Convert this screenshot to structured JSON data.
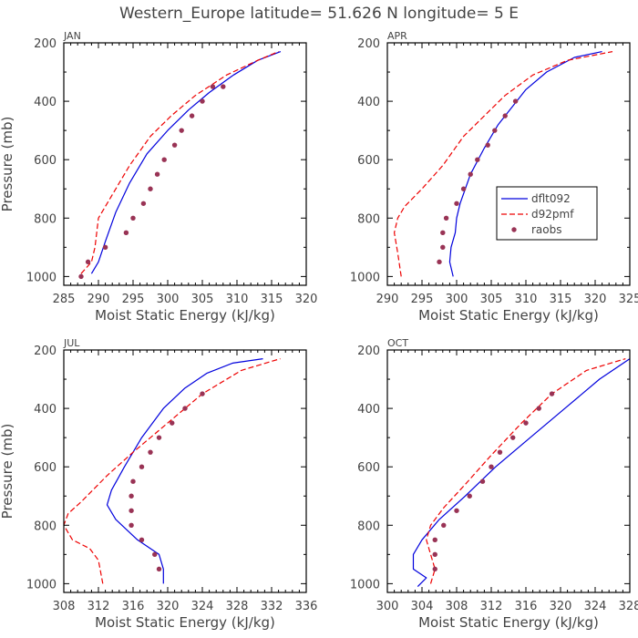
{
  "figure_title": "Western_Europe  latitude= 51.626 N longitude= 5 E",
  "legend_labels": [
    "dflt092",
    "d92pmf",
    "raobs"
  ],
  "colors": {
    "dflt092": "#0000dd",
    "d92pmf": "#ee0000",
    "raobs": "#993355",
    "frame": "#000000",
    "text": "#444444"
  },
  "chart_data": [
    {
      "type": "line",
      "title": "JAN",
      "xlabel": "Moist Static Energy (kJ/kg)",
      "ylabel": "Pressure (mb)",
      "xlim": [
        285,
        320
      ],
      "ylim": [
        1030,
        200
      ],
      "xticks": [
        285,
        290,
        295,
        300,
        305,
        310,
        315,
        320
      ],
      "yticks": [
        200,
        400,
        600,
        800,
        1000
      ],
      "legend": false,
      "series": [
        {
          "name": "dflt092",
          "style": "solid",
          "x": [
            289.0,
            290.0,
            291.0,
            292.5,
            294.5,
            297.0,
            300.0,
            303.0,
            306.0,
            309.5,
            313.0,
            316.3
          ],
          "y": [
            990,
            950,
            880,
            780,
            680,
            580,
            500,
            430,
            370,
            310,
            260,
            230
          ]
        },
        {
          "name": "d92pmf",
          "style": "dashed",
          "x": [
            287.5,
            289.0,
            289.5,
            290.0,
            292.0,
            294.5,
            297.5,
            300.5,
            304.0,
            308.5,
            313.0,
            316.0
          ],
          "y": [
            990,
            950,
            900,
            800,
            720,
            620,
            520,
            450,
            380,
            310,
            260,
            230
          ]
        },
        {
          "name": "raobs",
          "style": "points",
          "x": [
            287.5,
            288.5,
            291.0,
            294.0,
            295.0,
            296.5,
            297.5,
            298.5,
            299.5,
            301.0,
            302.0,
            303.5,
            305.0,
            306.5,
            308.0
          ],
          "y": [
            1000,
            950,
            900,
            850,
            800,
            750,
            700,
            650,
            600,
            550,
            500,
            450,
            400,
            350,
            350
          ]
        }
      ]
    },
    {
      "type": "line",
      "title": "APR",
      "xlabel": "Moist Static Energy (kJ/kg)",
      "ylabel": "",
      "xlim": [
        290,
        325
      ],
      "ylim": [
        1030,
        200
      ],
      "xticks": [
        290,
        295,
        300,
        305,
        310,
        315,
        320,
        325
      ],
      "yticks": [
        200,
        400,
        600,
        800,
        1000
      ],
      "legend": true,
      "series": [
        {
          "name": "dflt092",
          "style": "solid",
          "x": [
            299.5,
            299.0,
            299.2,
            299.8,
            300.0,
            300.5,
            302.0,
            304.0,
            306.0,
            308.0,
            310.0,
            313.0,
            317.0,
            321.0
          ],
          "y": [
            1000,
            950,
            900,
            850,
            800,
            750,
            650,
            560,
            480,
            420,
            360,
            300,
            250,
            230
          ]
        },
        {
          "name": "d92pmf",
          "style": "dashed",
          "x": [
            292.0,
            291.5,
            291.0,
            291.5,
            292.5,
            295.0,
            298.0,
            301.0,
            304.0,
            307.0,
            311.0,
            316.0,
            322.5
          ],
          "y": [
            1000,
            920,
            850,
            800,
            760,
            700,
            620,
            520,
            450,
            380,
            310,
            260,
            230
          ]
        },
        {
          "name": "raobs",
          "style": "points",
          "x": [
            297.5,
            298.0,
            298.0,
            298.5,
            300.0,
            301.0,
            302.0,
            303.0,
            304.5,
            305.5,
            307.0,
            308.5
          ],
          "y": [
            950,
            900,
            850,
            800,
            750,
            700,
            650,
            600,
            550,
            500,
            450,
            400
          ]
        }
      ]
    },
    {
      "type": "line",
      "title": "JUL",
      "xlabel": "Moist Static Energy (kJ/kg)",
      "ylabel": "Pressure (mb)",
      "xlim": [
        308,
        336
      ],
      "ylim": [
        1030,
        200
      ],
      "xticks": [
        308,
        312,
        316,
        320,
        324,
        328,
        332,
        336
      ],
      "yticks": [
        200,
        400,
        600,
        800,
        1000
      ],
      "legend": false,
      "series": [
        {
          "name": "dflt092",
          "style": "solid",
          "x": [
            319.5,
            319.5,
            319.0,
            316.5,
            314.0,
            313.0,
            313.5,
            315.0,
            317.0,
            319.5,
            322.0,
            324.5,
            327.5,
            331.0
          ],
          "y": [
            1000,
            950,
            900,
            850,
            780,
            730,
            680,
            600,
            500,
            400,
            330,
            280,
            245,
            230
          ]
        },
        {
          "name": "d92pmf",
          "style": "dashed",
          "x": [
            312.5,
            312.0,
            311.0,
            309.0,
            308.0,
            308.5,
            310.0,
            313.0,
            316.0,
            320.0,
            324.0,
            328.5,
            333.0
          ],
          "y": [
            1000,
            920,
            880,
            850,
            800,
            760,
            720,
            630,
            550,
            450,
            350,
            270,
            230
          ]
        },
        {
          "name": "raobs",
          "style": "points",
          "x": [
            319.0,
            318.5,
            317.0,
            315.8,
            315.8,
            315.8,
            316.0,
            317.0,
            318.0,
            319.0,
            320.5,
            322.0,
            324.0
          ],
          "y": [
            950,
            900,
            850,
            800,
            750,
            700,
            650,
            600,
            550,
            500,
            450,
            400,
            350
          ]
        }
      ]
    },
    {
      "type": "line",
      "title": "OCT",
      "xlabel": "Moist Static Energy (kJ/kg)",
      "ylabel": "",
      "xlim": [
        300,
        328
      ],
      "ylim": [
        1030,
        200
      ],
      "xticks": [
        300,
        304,
        308,
        312,
        316,
        320,
        324,
        328
      ],
      "yticks": [
        200,
        400,
        600,
        800,
        1000
      ],
      "legend": false,
      "series": [
        {
          "name": "dflt092",
          "style": "solid",
          "x": [
            303.5,
            304.5,
            303.0,
            303.0,
            304.0,
            306.0,
            309.0,
            312.5,
            316.5,
            320.5,
            324.5,
            328.0
          ],
          "y": [
            1010,
            980,
            950,
            900,
            850,
            780,
            700,
            600,
            500,
            400,
            300,
            230
          ]
        },
        {
          "name": "d92pmf",
          "style": "dashed",
          "x": [
            305.0,
            305.5,
            305.0,
            304.5,
            305.0,
            306.5,
            309.0,
            312.0,
            315.5,
            319.0,
            323.0,
            327.5
          ],
          "y": [
            1000,
            950,
            900,
            850,
            800,
            740,
            660,
            560,
            450,
            350,
            270,
            230
          ]
        },
        {
          "name": "raobs",
          "style": "points",
          "x": [
            305.5,
            305.5,
            305.5,
            306.5,
            308.0,
            309.5,
            311.0,
            312.0,
            313.0,
            314.5,
            316.0,
            317.5,
            319.0
          ],
          "y": [
            950,
            900,
            850,
            800,
            750,
            700,
            650,
            600,
            550,
            500,
            450,
            400,
            350
          ]
        }
      ]
    }
  ]
}
